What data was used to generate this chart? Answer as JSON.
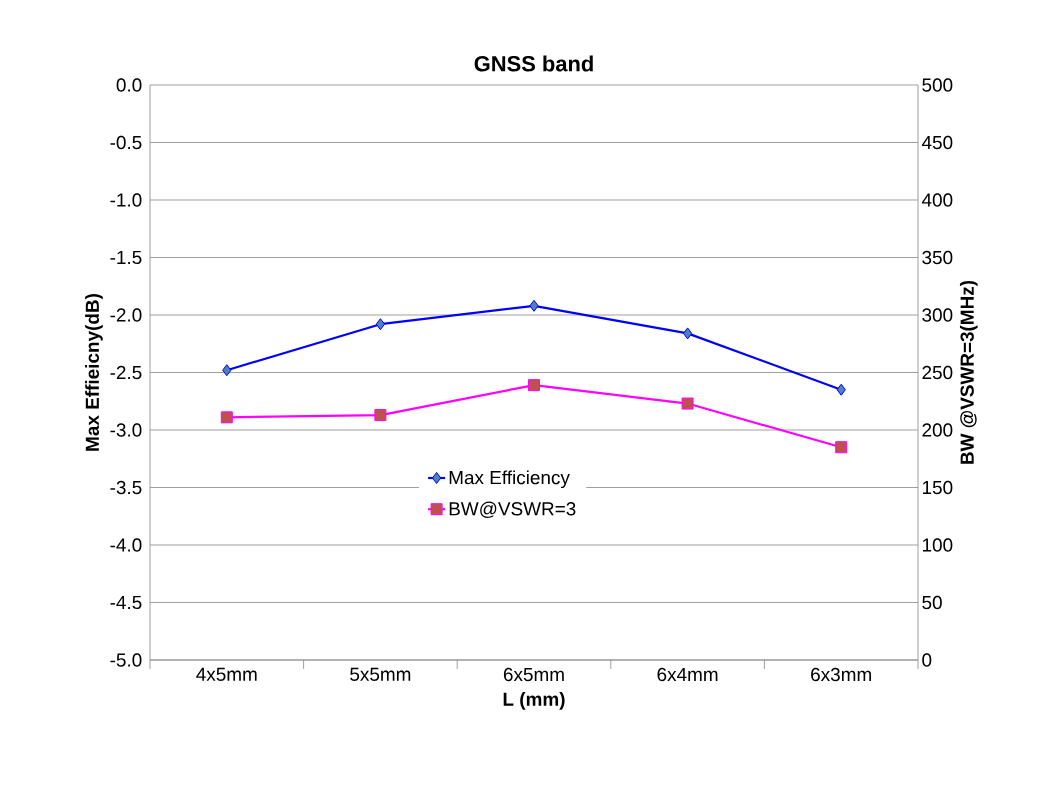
{
  "chart_data": {
    "type": "line",
    "title": "GNSS band",
    "xlabel": "L (mm)",
    "ylabel": "Max Effieicny(dB)",
    "y2label": "BW @VSWR=3(MHz)",
    "categories": [
      "4x5mm",
      "5x5mm",
      "6x5mm",
      "6x4mm",
      "6x3mm"
    ],
    "series": [
      {
        "name": "Max Efficiency",
        "color": "#0000ff",
        "colors": [
          "#4f81bd",
          "#4f81bd",
          "#4f81bd",
          "#4f81bd",
          "#4f81bd"
        ],
        "marker": "diamond",
        "values": [
          -2.48,
          -2.08,
          -1.92,
          -2.16,
          -2.65
        ]
      },
      {
        "name": "BW@VSWR=3",
        "color": "#ff00ff",
        "colors": [
          "#c0504d",
          "#c0504d",
          "#c0504d",
          "#c0504d",
          "#c0504d"
        ],
        "marker": "square",
        "axis": "y2",
        "values": [
          211,
          213,
          239,
          223,
          185
        ]
      }
    ],
    "ylim": [
      -5,
      0
    ],
    "yticks": [
      {
        "value": -5,
        "label": "-5.0"
      },
      -4.5,
      {
        "value": -4,
        "label": "-4.0"
      },
      -3.5,
      {
        "value": -3,
        "label": "-3.0"
      },
      -2.5,
      {
        "value": -2,
        "label": "-2.0"
      },
      -1.5,
      {
        "value": -1,
        "label": "-1.0"
      },
      -0.5,
      {
        "value": 0,
        "label": "0.0"
      }
    ],
    "y2lim": [
      0,
      500
    ],
    "y2ticks": [
      0,
      50,
      100,
      150,
      200,
      250,
      300,
      350,
      400,
      450,
      500
    ],
    "grid": "y",
    "legend": "bottom",
    "line_style": "solid"
  }
}
